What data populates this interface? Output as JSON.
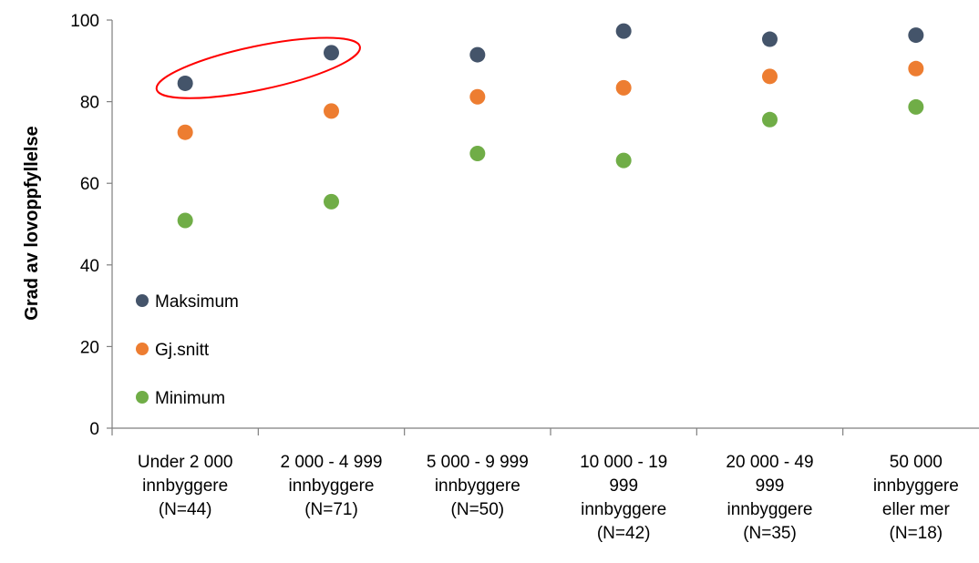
{
  "chart_data": {
    "type": "scatter",
    "title": "",
    "xlabel": "",
    "ylabel": "Grad av lovoppfyllelse",
    "ylim": [
      0,
      100
    ],
    "yticks": [
      0,
      20,
      40,
      60,
      80,
      100
    ],
    "grid": false,
    "legend_position": "left",
    "categories": [
      [
        "Under 2 000",
        "innbyggere",
        "(N=44)"
      ],
      [
        "2 000 - 4 999",
        "innbyggere",
        "(N=71)"
      ],
      [
        "5 000 - 9 999",
        "innbyggere",
        "(N=50)"
      ],
      [
        "10 000 - 19",
        "999",
        "innbyggere",
        "(N=42)"
      ],
      [
        "20 000 - 49",
        "999",
        "innbyggere",
        "(N=35)"
      ],
      [
        "50 000",
        "innbyggere",
        "eller mer",
        "(N=18)"
      ]
    ],
    "series": [
      {
        "name": "Maksimum",
        "color": "#44546a",
        "values": [
          84.5,
          92,
          91.5,
          97.3,
          95.3,
          96.3
        ]
      },
      {
        "name": "Gj.snitt",
        "color": "#ed7d31",
        "values": [
          72.5,
          77.7,
          81.2,
          83.4,
          86.2,
          88.1
        ]
      },
      {
        "name": "Minimum",
        "color": "#70ad47",
        "values": [
          50.9,
          55.5,
          67.3,
          65.6,
          75.6,
          78.7
        ]
      }
    ],
    "annotation": {
      "shape": "ellipse",
      "color": "#ff0000",
      "highlights": "Maksimum, Under 2 000 – 2 000 - 4 999 innbyggere"
    }
  }
}
